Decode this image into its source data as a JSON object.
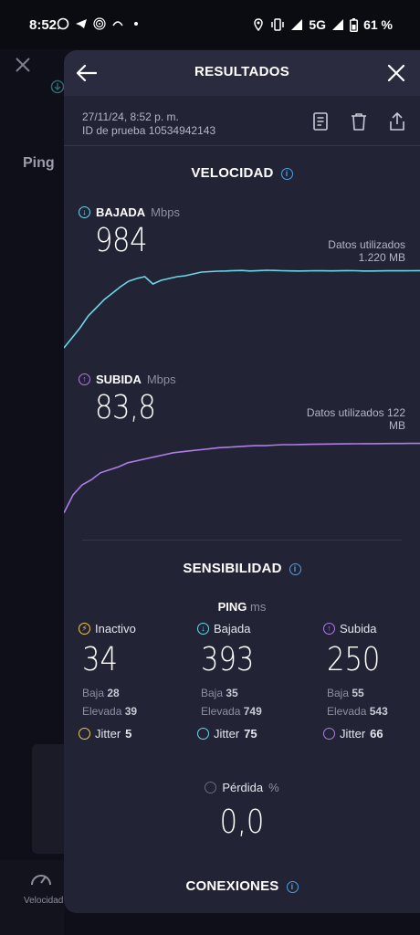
{
  "status_bar": {
    "time": "8:52",
    "left_icons": [
      "whatsapp-icon",
      "telegram-icon",
      "fingerprint-icon",
      "app-icon",
      "dot-icon"
    ],
    "network": "5G",
    "battery": "61 %"
  },
  "background": {
    "ping_label": "Ping",
    "nav_label": "Velocidad"
  },
  "header": {
    "title": "RESULTADOS"
  },
  "meta": {
    "date": "27/11/24, 8:52 p. m.",
    "test_id": "ID de prueba 10534942143"
  },
  "speed": {
    "section_title": "VELOCIDAD",
    "download": {
      "label": "BAJADA",
      "unit": "Mbps",
      "value": "984",
      "used_line1": "Datos utilizados",
      "used_line2": "1.220 MB",
      "color": "#6ad8e8"
    },
    "upload": {
      "label": "SUBIDA",
      "unit": "Mbps",
      "value": "83,8",
      "used_line1": "Datos utilizados 122",
      "used_line2": "MB",
      "color": "#b07ce8"
    }
  },
  "chart_data": [
    {
      "type": "line",
      "series": [
        {
          "name": "BAJADA",
          "values": [
            120,
            230,
            340,
            470,
            560,
            650,
            720,
            790,
            850,
            880,
            900,
            820,
            860,
            880,
            900,
            910,
            930,
            950,
            955,
            960,
            962,
            966,
            968,
            962,
            966,
            970,
            968,
            965,
            963,
            962,
            963,
            965,
            964,
            963,
            964,
            966,
            965,
            962,
            962,
            963,
            964,
            965,
            964,
            965,
            966
          ]
        }
      ],
      "ylim": [
        0,
        1100
      ]
    },
    {
      "type": "line",
      "series": [
        {
          "name": "SUBIDA",
          "values": [
            12,
            30,
            40,
            45,
            52,
            55,
            58,
            62,
            64,
            66,
            68,
            70,
            72,
            73,
            74,
            75,
            76,
            77,
            77.5,
            78,
            78.5,
            79,
            79,
            79.5,
            80,
            80,
            80.2,
            80.4,
            80.5,
            80.6,
            80.7,
            80.8,
            80.9,
            81,
            81,
            81.1,
            81.2,
            81.2,
            81.3,
            81.3
          ]
        }
      ],
      "ylim": [
        0,
        100
      ]
    }
  ],
  "responsiveness": {
    "section_title": "SENSIBILIDAD",
    "ping_label": "PING",
    "ping_unit": "ms",
    "columns": [
      {
        "label": "Inactivo",
        "value": "34",
        "low_label": "Baja",
        "low": "28",
        "high_label": "Elevada",
        "high": "39",
        "jitter_label": "Jitter",
        "jitter": "5",
        "color": "#f2c94c"
      },
      {
        "label": "Bajada",
        "value": "393",
        "low_label": "Baja",
        "low": "35",
        "high_label": "Elevada",
        "high": "749",
        "jitter_label": "Jitter",
        "jitter": "75",
        "color": "#6ad8e8"
      },
      {
        "label": "Subida",
        "value": "250",
        "low_label": "Baja",
        "low": "55",
        "high_label": "Elevada",
        "high": "543",
        "jitter_label": "Jitter",
        "jitter": "66",
        "color": "#b07ce8"
      }
    ],
    "loss_label": "Pérdida",
    "loss_unit": "%",
    "loss_value": "0,0"
  },
  "connections": {
    "section_title": "CONEXIONES"
  }
}
